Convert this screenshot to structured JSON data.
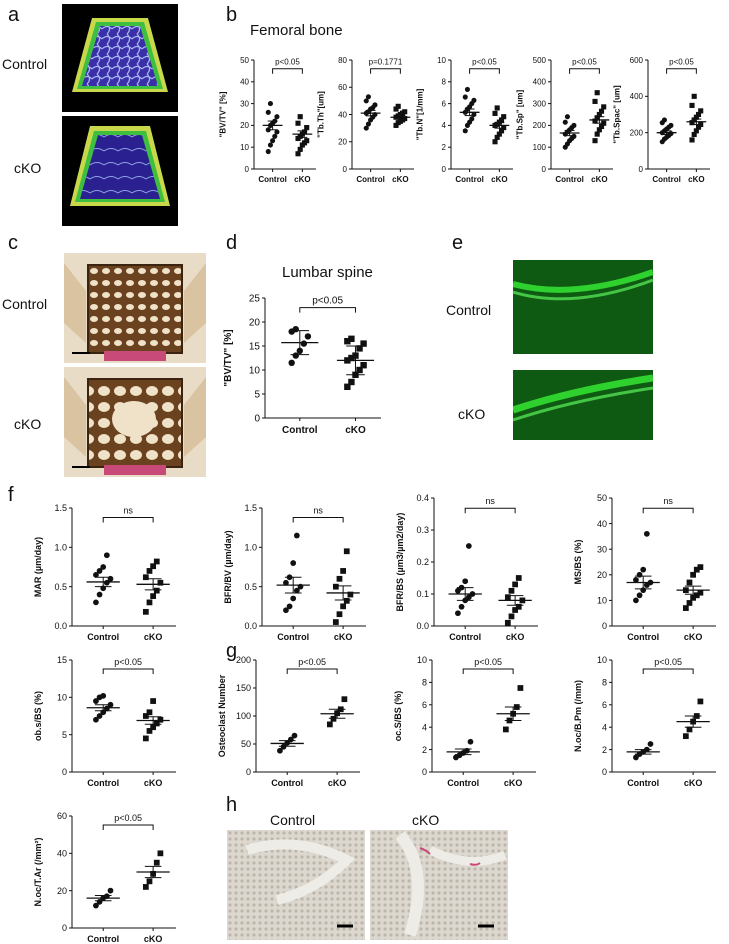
{
  "panels": {
    "a": "a",
    "b": "b",
    "c": "c",
    "d": "d",
    "e": "e",
    "f": "f",
    "g": "g",
    "h": "h"
  },
  "titles": {
    "femoral": "Femoral bone",
    "lumbar": "Lumbar spine"
  },
  "groups": {
    "a": [
      "Control",
      "cKO"
    ],
    "c": [
      "Control",
      "cKO"
    ],
    "e": [
      "Control",
      "cKO"
    ],
    "h": [
      "Control",
      "cKO"
    ]
  },
  "colors": {
    "bone_green": "#3fbf3f",
    "bone_blue": "#3a2fa8",
    "bone_yellow": "#c8d84a",
    "fluor_green": "#2fd12f",
    "brown_bone": "#6b4220",
    "pink": "#c84a78"
  },
  "chart_data": [
    {
      "id": "b1",
      "type": "scatter",
      "ylabel": "\"BV/TV\" [%]",
      "ylim": [
        0,
        50
      ],
      "yticks": [
        "0",
        "10",
        "20",
        "30",
        "40",
        "50"
      ],
      "categories": [
        "Control",
        "cKO"
      ],
      "sig": "p<0.05",
      "series": [
        {
          "values": [
            8,
            11,
            13,
            15,
            17,
            18,
            20,
            21,
            22,
            24,
            26,
            30
          ],
          "marker": "circle",
          "mean": 20,
          "sem": 2
        },
        {
          "values": [
            7,
            9,
            11,
            12,
            13,
            14,
            15,
            16,
            17,
            19,
            21,
            24
          ],
          "marker": "square",
          "mean": 16,
          "sem": 1.5
        }
      ]
    },
    {
      "id": "b2",
      "type": "scatter",
      "ylabel": "\"Tb.Th\"[um]",
      "ylim": [
        0,
        80
      ],
      "yticks": [
        "0",
        "20",
        "40",
        "60",
        "80"
      ],
      "categories": [
        "Control",
        "cKO"
      ],
      "sig": "p=0.1771",
      "series": [
        {
          "values": [
            30,
            33,
            36,
            38,
            40,
            41,
            42,
            44,
            45,
            47,
            50,
            53
          ],
          "marker": "circle",
          "mean": 41,
          "sem": 2
        },
        {
          "values": [
            32,
            34,
            35,
            36,
            37,
            38,
            39,
            40,
            41,
            42,
            44,
            46
          ],
          "marker": "square",
          "mean": 38,
          "sem": 1.2
        }
      ]
    },
    {
      "id": "b3",
      "type": "scatter",
      "ylabel": "\"Tb.N\"[1/mm]",
      "ylim": [
        0,
        10
      ],
      "yticks": [
        "0",
        "2",
        "4",
        "6",
        "8",
        "10"
      ],
      "categories": [
        "Control",
        "cKO"
      ],
      "sig": "p<0.05",
      "series": [
        {
          "values": [
            3.5,
            4.0,
            4.3,
            4.6,
            5.0,
            5.2,
            5.5,
            5.7,
            6.0,
            6.3,
            6.6,
            7.3
          ],
          "marker": "circle",
          "mean": 5.2,
          "sem": 0.3
        },
        {
          "values": [
            2.5,
            2.9,
            3.2,
            3.5,
            3.8,
            4.0,
            4.1,
            4.3,
            4.5,
            4.8,
            5.1,
            5.6
          ],
          "marker": "square",
          "mean": 4.0,
          "sem": 0.25
        }
      ]
    },
    {
      "id": "b4",
      "type": "scatter",
      "ylabel": "\"Tb.Sp\" [um]",
      "ylim": [
        0,
        500
      ],
      "yticks": [
        "0",
        "100",
        "200",
        "300",
        "400",
        "500"
      ],
      "categories": [
        "Control",
        "cKO"
      ],
      "sig": "p<0.05",
      "series": [
        {
          "values": [
            100,
            115,
            130,
            140,
            150,
            160,
            170,
            180,
            190,
            200,
            215,
            240
          ],
          "marker": "circle",
          "mean": 165,
          "sem": 12
        },
        {
          "values": [
            130,
            160,
            180,
            195,
            210,
            220,
            235,
            250,
            265,
            285,
            310,
            350
          ],
          "marker": "square",
          "mean": 225,
          "sem": 15
        }
      ]
    },
    {
      "id": "b5",
      "type": "scatter",
      "ylabel": "\"Tb.Spac\" [um]",
      "ylim": [
        0,
        600
      ],
      "yticks": [
        "0",
        "200",
        "400",
        "600"
      ],
      "categories": [
        "Control",
        "cKO"
      ],
      "sig": "p<0.05",
      "series": [
        {
          "values": [
            150,
            165,
            175,
            185,
            195,
            200,
            210,
            220,
            230,
            240,
            255,
            270
          ],
          "marker": "circle",
          "mean": 200,
          "sem": 10
        },
        {
          "values": [
            160,
            190,
            210,
            230,
            245,
            255,
            270,
            285,
            300,
            320,
            350,
            400
          ],
          "marker": "square",
          "mean": 260,
          "sem": 15
        }
      ]
    },
    {
      "id": "d",
      "type": "scatter",
      "ylabel": "\"BV/TV\" [%]",
      "ylim": [
        0,
        25
      ],
      "yticks": [
        "0",
        "5",
        "10",
        "15",
        "20",
        "25"
      ],
      "categories": [
        "Control",
        "cKO"
      ],
      "sig": "p<0.05",
      "series": [
        {
          "values": [
            11.5,
            13,
            14,
            15.5,
            17,
            18,
            18.5
          ],
          "marker": "circle",
          "mean": 15.7,
          "sd": 2.5
        },
        {
          "values": [
            6.5,
            7.5,
            9,
            10,
            11,
            12,
            12.5,
            13,
            14.5,
            15.5,
            16,
            16.5
          ],
          "marker": "square",
          "mean": 12,
          "sd": 3
        }
      ]
    },
    {
      "id": "f1",
      "type": "scatter",
      "ylabel": "MAR (µm/day)",
      "ylim": [
        0,
        1.5
      ],
      "yticks": [
        "0.0",
        "0.5",
        "1.0",
        "1.5"
      ],
      "categories": [
        "Control",
        "cKO"
      ],
      "sig": "ns",
      "series": [
        {
          "values": [
            0.3,
            0.4,
            0.48,
            0.55,
            0.6,
            0.65,
            0.7,
            0.75,
            0.9
          ],
          "marker": "circle",
          "mean": 0.56,
          "sem": 0.06
        },
        {
          "values": [
            0.18,
            0.3,
            0.38,
            0.45,
            0.55,
            0.62,
            0.7,
            0.76,
            0.82
          ],
          "marker": "square",
          "mean": 0.53,
          "sem": 0.07
        }
      ]
    },
    {
      "id": "f2",
      "type": "scatter",
      "ylabel": "BFR/BV (µm/day)",
      "ylim": [
        0,
        1.5
      ],
      "yticks": [
        "0.0",
        "0.5",
        "1.0",
        "1.5"
      ],
      "categories": [
        "Control",
        "cKO"
      ],
      "sig": "ns",
      "series": [
        {
          "values": [
            0.2,
            0.25,
            0.35,
            0.45,
            0.5,
            0.55,
            0.62,
            0.8,
            1.15
          ],
          "marker": "circle",
          "mean": 0.52,
          "sem": 0.1
        },
        {
          "values": [
            0.05,
            0.15,
            0.25,
            0.32,
            0.4,
            0.5,
            0.6,
            0.7,
            0.95
          ],
          "marker": "square",
          "mean": 0.42,
          "sem": 0.09
        }
      ]
    },
    {
      "id": "f3",
      "type": "scatter",
      "ylabel": "BFR/BS (µm3/µm2/day)",
      "ylim": [
        0,
        0.4
      ],
      "yticks": [
        "0.0",
        "0.1",
        "0.2",
        "0.3",
        "0.4"
      ],
      "categories": [
        "Control",
        "cKO"
      ],
      "sig": "ns",
      "series": [
        {
          "values": [
            0.04,
            0.06,
            0.08,
            0.09,
            0.1,
            0.11,
            0.12,
            0.14,
            0.25
          ],
          "marker": "circle",
          "mean": 0.1,
          "sem": 0.02
        },
        {
          "values": [
            0.01,
            0.03,
            0.05,
            0.06,
            0.08,
            0.09,
            0.11,
            0.13,
            0.15
          ],
          "marker": "square",
          "mean": 0.08,
          "sem": 0.015
        }
      ]
    },
    {
      "id": "f4",
      "type": "scatter",
      "ylabel": "MS/BS (%)",
      "ylim": [
        0,
        50
      ],
      "yticks": [
        "0",
        "10",
        "20",
        "30",
        "40",
        "50"
      ],
      "categories": [
        "Control",
        "cKO"
      ],
      "sig": "ns",
      "series": [
        {
          "values": [
            10,
            12,
            14,
            16,
            17,
            18,
            20,
            22,
            36
          ],
          "marker": "circle",
          "mean": 17,
          "sem": 2.5
        },
        {
          "values": [
            7,
            9,
            11,
            12,
            13,
            14,
            17,
            20,
            22,
            23
          ],
          "marker": "square",
          "mean": 14,
          "sem": 1.6
        }
      ]
    },
    {
      "id": "f5",
      "type": "scatter",
      "ylabel": "ob.s/BS (%)",
      "ylim": [
        0,
        15
      ],
      "yticks": [
        "0",
        "5",
        "10",
        "15"
      ],
      "categories": [
        "Control",
        "cKO"
      ],
      "sig": "p<0.05",
      "series": [
        {
          "values": [
            7,
            7.5,
            8,
            8.5,
            9,
            9.5,
            10,
            10.2
          ],
          "marker": "circle",
          "mean": 8.6,
          "sem": 0.4
        },
        {
          "values": [
            4.5,
            5.5,
            6,
            6.5,
            7,
            7.5,
            8,
            9.5
          ],
          "marker": "square",
          "mean": 6.9,
          "sem": 0.5
        }
      ]
    },
    {
      "id": "g1",
      "type": "scatter",
      "ylabel": "Osteoclast Number",
      "ylim": [
        0,
        200
      ],
      "yticks": [
        "0",
        "50",
        "100",
        "150",
        "200"
      ],
      "categories": [
        "Control",
        "cKO"
      ],
      "sig": "p<0.05",
      "series": [
        {
          "values": [
            38,
            45,
            52,
            58,
            65
          ],
          "marker": "circle",
          "mean": 51,
          "sem": 5
        },
        {
          "values": [
            85,
            95,
            105,
            112,
            130
          ],
          "marker": "square",
          "mean": 104,
          "sem": 8
        }
      ]
    },
    {
      "id": "g2",
      "type": "scatter",
      "ylabel": "oc.S/BS (%)",
      "ylim": [
        0,
        10
      ],
      "yticks": [
        "0",
        "2",
        "4",
        "6",
        "8",
        "10"
      ],
      "categories": [
        "Control",
        "cKO"
      ],
      "sig": "p<0.05",
      "series": [
        {
          "values": [
            1.3,
            1.5,
            1.7,
            1.9,
            2.7
          ],
          "marker": "circle",
          "mean": 1.8,
          "sem": 0.25
        },
        {
          "values": [
            3.8,
            4.6,
            5.2,
            5.8,
            7.5
          ],
          "marker": "square",
          "mean": 5.2,
          "sem": 0.6
        }
      ]
    },
    {
      "id": "g3",
      "type": "scatter",
      "ylabel": "N.oc/B.Pm (/mm)",
      "ylim": [
        0,
        10
      ],
      "yticks": [
        "0",
        "2",
        "4",
        "6",
        "8",
        "10"
      ],
      "categories": [
        "Control",
        "cKO"
      ],
      "sig": "p<0.05",
      "series": [
        {
          "values": [
            1.3,
            1.6,
            1.8,
            2.0,
            2.5
          ],
          "marker": "circle",
          "mean": 1.8,
          "sem": 0.2
        },
        {
          "values": [
            3.2,
            3.8,
            4.5,
            5.0,
            6.3
          ],
          "marker": "square",
          "mean": 4.5,
          "sem": 0.5
        }
      ]
    },
    {
      "id": "g4",
      "type": "scatter",
      "ylabel": "N.oc/T.Ar (/mm²)",
      "ylim": [
        0,
        60
      ],
      "yticks": [
        "0",
        "20",
        "40",
        "60"
      ],
      "categories": [
        "Control",
        "cKO"
      ],
      "sig": "p<0.05",
      "series": [
        {
          "values": [
            12,
            14,
            16,
            17,
            20
          ],
          "marker": "circle",
          "mean": 16,
          "sem": 1.4
        },
        {
          "values": [
            22,
            25,
            29,
            35,
            40
          ],
          "marker": "square",
          "mean": 30,
          "sem": 3
        }
      ]
    }
  ]
}
